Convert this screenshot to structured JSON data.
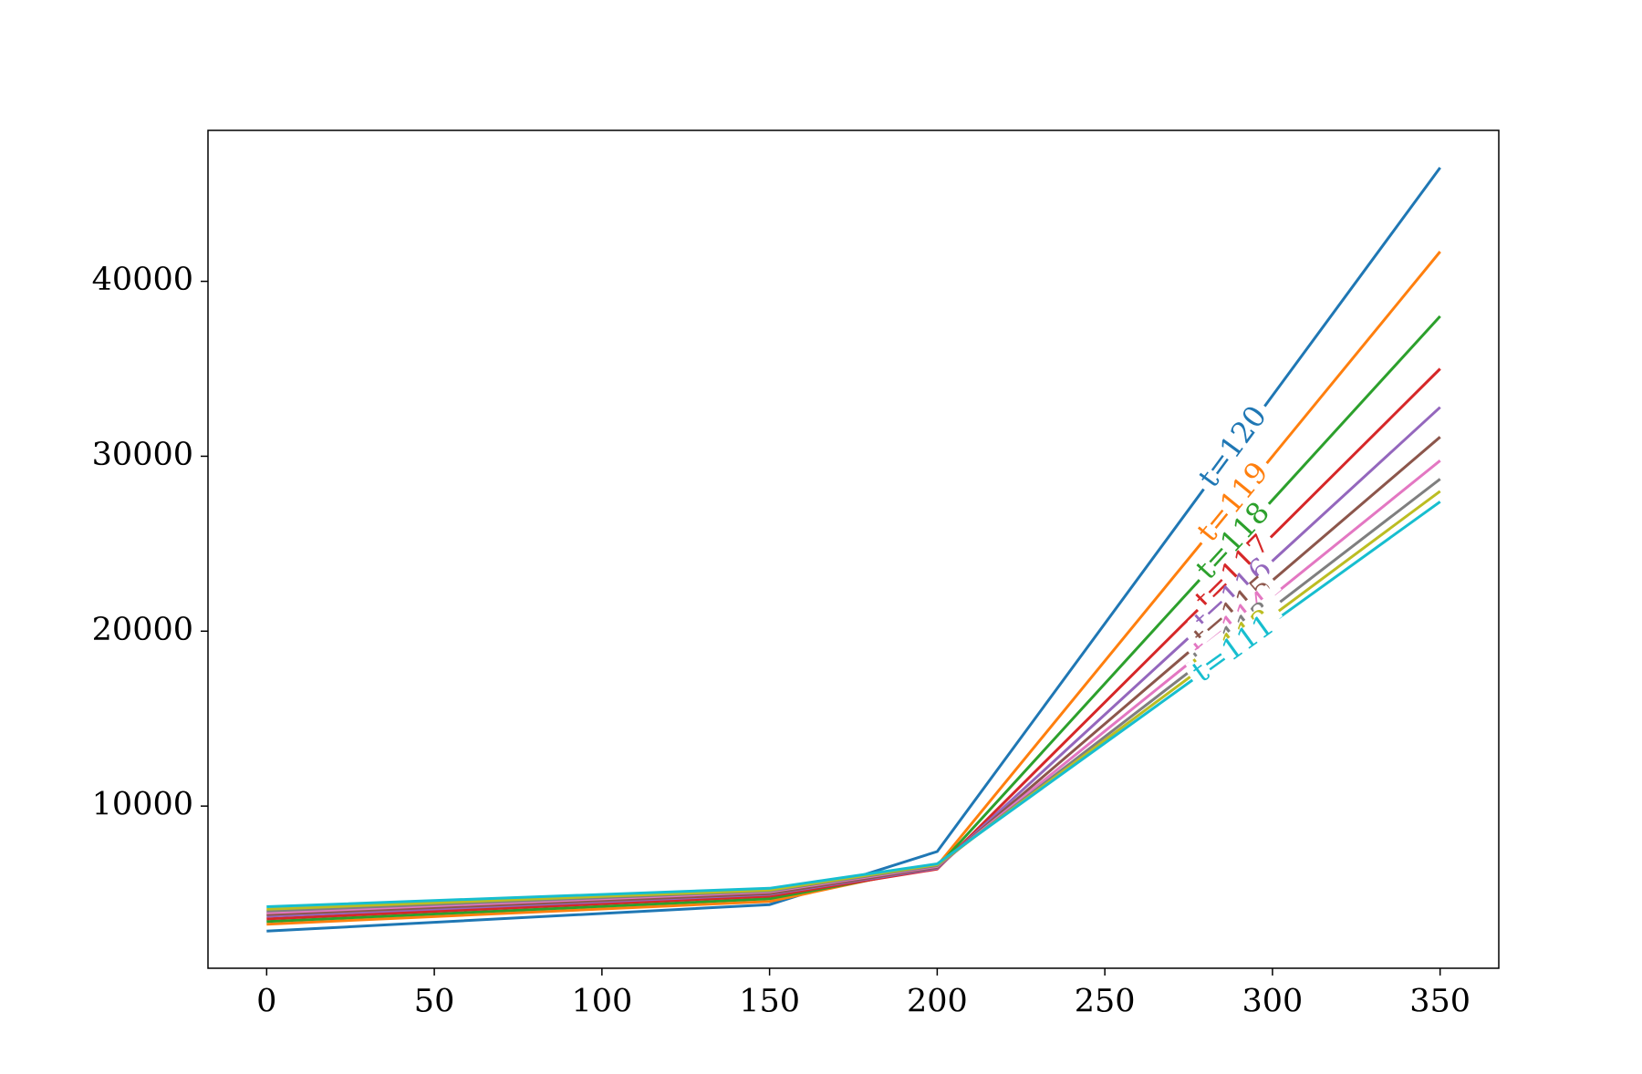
{
  "chart_data": {
    "type": "line",
    "x": [
      0,
      150,
      200,
      350
    ],
    "series": [
      {
        "name": "t=120",
        "color": "#1f77b4",
        "values": [
          2850,
          4370,
          7400,
          46500
        ]
      },
      {
        "name": "t=119",
        "color": "#ff7f0e",
        "values": [
          3250,
          4550,
          6600,
          41700
        ]
      },
      {
        "name": "t=118",
        "color": "#2ca02c",
        "values": [
          3400,
          4700,
          6500,
          38000
        ]
      },
      {
        "name": "t=117",
        "color": "#d62728",
        "values": [
          3550,
          4850,
          6400,
          35000
        ]
      },
      {
        "name": "t=116",
        "color": "#9467bd",
        "values": [
          3700,
          4950,
          6450,
          32800
        ]
      },
      {
        "name": "t=115",
        "color": "#8c564b",
        "values": [
          3800,
          5000,
          6500,
          31100
        ]
      },
      {
        "name": "t=114",
        "color": "#e377c2",
        "values": [
          3900,
          5100,
          6550,
          29750
        ]
      },
      {
        "name": "t=113",
        "color": "#7f7f7f",
        "values": [
          4000,
          5150,
          6600,
          28700
        ]
      },
      {
        "name": "t=112",
        "color": "#bcbd22",
        "values": [
          4100,
          5200,
          6650,
          28000
        ]
      },
      {
        "name": "t=111",
        "color": "#17becf",
        "values": [
          4250,
          5300,
          6700,
          27400
        ]
      }
    ],
    "xlim": [
      -17.5,
      367.5
    ],
    "ylim": [
      730,
      48630
    ],
    "xticks": [
      0,
      50,
      100,
      150,
      200,
      250,
      300,
      350
    ],
    "yticks": [
      10000,
      20000,
      30000,
      40000
    ],
    "grid": false
  }
}
